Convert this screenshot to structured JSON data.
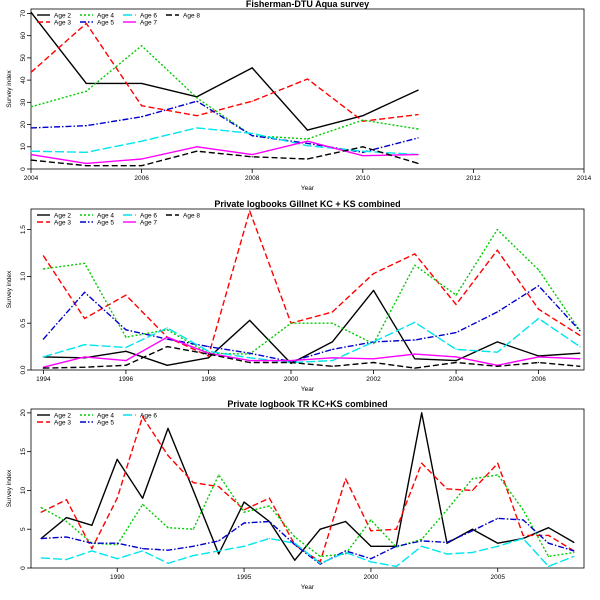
{
  "chart_data": [
    {
      "type": "line",
      "title": "Fisherman-DTU Aqua survey",
      "xlabel": "Year",
      "ylabel": "Survey index",
      "xlim": [
        2004,
        2014
      ],
      "ylim": [
        0,
        72
      ],
      "xticks": [
        2004,
        2006,
        2008,
        2010,
        2012,
        2014
      ],
      "yticks": [
        0,
        10,
        20,
        30,
        40,
        50,
        60,
        70
      ],
      "legend_position": "top-left",
      "x": [
        2004,
        2005,
        2006,
        2007,
        2008,
        2009,
        2010,
        2011
      ],
      "series": [
        {
          "name": "Age 2",
          "color": "#000000",
          "dash": "solid",
          "values": [
            70.5,
            38.5,
            38.5,
            32.5,
            45.5,
            17.5,
            24,
            35.5
          ]
        },
        {
          "name": "Age 3",
          "color": "#ff0000",
          "dash": "dash",
          "values": [
            43.5,
            65.5,
            28.5,
            24,
            30.5,
            40.5,
            21.5,
            24.5
          ]
        },
        {
          "name": "Age 4",
          "color": "#00cc00",
          "dash": "dot",
          "values": [
            28,
            35,
            55.5,
            32,
            15,
            13.5,
            22,
            18
          ]
        },
        {
          "name": "Age 5",
          "color": "#0000cc",
          "dash": "dashdot",
          "values": [
            18.5,
            19.5,
            23.5,
            30.5,
            15,
            11.5,
            7.5,
            14
          ]
        },
        {
          "name": "Age 6",
          "color": "#00e5ee",
          "dash": "longdash",
          "values": [
            8,
            7.5,
            12.5,
            18.5,
            16,
            10.5,
            8,
            6.5
          ]
        },
        {
          "name": "Age 7",
          "color": "#ff00ff",
          "dash": "solid",
          "values": [
            6.5,
            2.5,
            4.5,
            10,
            6.5,
            12.5,
            6,
            6.5
          ]
        },
        {
          "name": "Age 8",
          "color": "#000000",
          "dash": "dash",
          "values": [
            4,
            1.5,
            1.5,
            8,
            5.5,
            4.5,
            10,
            2.5
          ]
        }
      ]
    },
    {
      "type": "line",
      "title": "Private logbooks Gillnet KC + KS combined",
      "xlabel": "Year",
      "ylabel": "Survey index",
      "xlim": [
        1993.7,
        2007.1
      ],
      "ylim": [
        0,
        1.72
      ],
      "xticks": [
        1994,
        1996,
        1998,
        2000,
        2002,
        2004,
        2006
      ],
      "yticks": [
        0.0,
        0.5,
        1.0,
        1.5
      ],
      "ytick_labels": [
        "0.0",
        "0.5",
        "1.0",
        "1.5"
      ],
      "legend_position": "top-left",
      "x": [
        1994,
        1995,
        1996,
        1997,
        1998,
        1999,
        2000,
        2001,
        2002,
        2003,
        2004,
        2005,
        2006,
        2007
      ],
      "series": [
        {
          "name": "Age 2",
          "color": "#000000",
          "dash": "solid",
          "values": [
            0.14,
            0.13,
            0.2,
            0.05,
            0.13,
            0.53,
            0.07,
            0.3,
            0.85,
            0.12,
            0.1,
            0.3,
            0.15,
            0.18
          ]
        },
        {
          "name": "Age 3",
          "color": "#ff0000",
          "dash": "dash",
          "values": [
            1.22,
            0.55,
            0.8,
            0.35,
            0.15,
            1.7,
            0.5,
            0.62,
            1.03,
            1.24,
            0.7,
            1.28,
            0.65,
            0.37
          ]
        },
        {
          "name": "Age 4",
          "color": "#00cc00",
          "dash": "dot",
          "values": [
            1.08,
            1.14,
            0.35,
            0.43,
            0.18,
            0.17,
            0.5,
            0.5,
            0.28,
            1.12,
            0.8,
            1.5,
            1.07,
            0.42
          ]
        },
        {
          "name": "Age 5",
          "color": "#0000cc",
          "dash": "dashdot",
          "values": [
            0.33,
            0.83,
            0.43,
            0.33,
            0.25,
            0.18,
            0.09,
            0.22,
            0.3,
            0.32,
            0.4,
            0.62,
            0.9,
            0.42
          ]
        },
        {
          "name": "Age 6",
          "color": "#00e5ee",
          "dash": "longdash",
          "values": [
            0.14,
            0.27,
            0.24,
            0.45,
            0.2,
            0.13,
            0.08,
            0.1,
            0.3,
            0.51,
            0.22,
            0.19,
            0.55,
            0.25
          ]
        },
        {
          "name": "Age 7",
          "color": "#ff00ff",
          "dash": "solid",
          "values": [
            0.03,
            0.14,
            0.1,
            0.35,
            0.18,
            0.1,
            0.1,
            0.13,
            0.12,
            0.17,
            0.14,
            0.05,
            0.14,
            0.12
          ]
        },
        {
          "name": "Age 8",
          "color": "#000000",
          "dash": "dash",
          "values": [
            0.02,
            0.03,
            0.05,
            0.25,
            0.17,
            0.08,
            0.08,
            0.04,
            0.08,
            0.02,
            0.08,
            0.04,
            0.08,
            0.04
          ]
        }
      ]
    },
    {
      "type": "line",
      "title": "Private logbook TR KC+KS combined",
      "xlabel": "Year",
      "ylabel": "Survey index",
      "xlim": [
        1986.6,
        2008.4
      ],
      "ylim": [
        0,
        20.5
      ],
      "xticks": [
        1990,
        1995,
        2000,
        2005
      ],
      "yticks": [
        0,
        5,
        10,
        15,
        20
      ],
      "legend_position": "top-left",
      "x": [
        1987,
        1988,
        1989,
        1990,
        1991,
        1992,
        1993,
        1994,
        1995,
        1996,
        1997,
        1998,
        1999,
        2000,
        2001,
        2002,
        2003,
        2004,
        2005,
        2006,
        2007,
        2008
      ],
      "series": [
        {
          "name": "Age 2",
          "color": "#000000",
          "dash": "solid",
          "values": [
            3.8,
            6.5,
            5.5,
            14,
            9,
            18,
            10,
            1.8,
            8.5,
            6,
            1,
            5,
            6,
            2.8,
            2.8,
            20,
            3.2,
            5,
            3.2,
            3.8,
            5.2,
            3.3
          ]
        },
        {
          "name": "Age 3",
          "color": "#ff0000",
          "dash": "dash",
          "values": [
            7.2,
            8.8,
            2.5,
            9,
            19.5,
            14.5,
            11,
            10.5,
            7.5,
            9,
            3,
            0.8,
            11.5,
            4.8,
            5,
            13.5,
            10.2,
            10,
            13.5,
            4.2,
            4.2,
            2.2
          ]
        },
        {
          "name": "Age 4",
          "color": "#00cc00",
          "dash": "dot",
          "values": [
            7.8,
            6,
            3.2,
            3,
            8.2,
            5.2,
            5,
            12,
            7.2,
            8,
            4,
            1.5,
            1.8,
            6.2,
            2.7,
            3.7,
            7.5,
            11.5,
            12,
            7.5,
            1.5,
            2
          ]
        },
        {
          "name": "Age 5",
          "color": "#0000cc",
          "dash": "dashdot",
          "values": [
            3.8,
            4,
            3.2,
            3.2,
            2.5,
            2.3,
            2.8,
            3.5,
            5.8,
            6,
            3,
            0.5,
            2.2,
            1.2,
            2.8,
            3.5,
            3.3,
            4.8,
            6.4,
            6.2,
            3.2,
            2.2
          ]
        },
        {
          "name": "Age 6",
          "color": "#00e5ee",
          "dash": "longdash",
          "values": [
            1.3,
            1.1,
            2.2,
            1.2,
            2.2,
            0.6,
            1.6,
            2.2,
            2.8,
            3.8,
            3.2,
            0.6,
            2,
            0.8,
            0.2,
            2.8,
            1.8,
            2,
            2.8,
            3.8,
            0.2,
            1.5
          ]
        }
      ]
    }
  ]
}
